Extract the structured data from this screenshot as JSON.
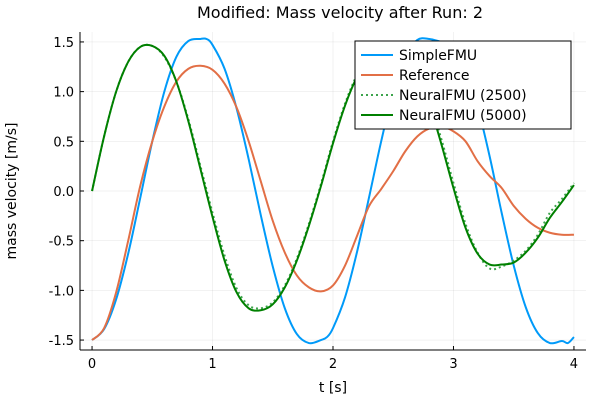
{
  "chart_data": {
    "type": "line",
    "title": "Modified: Mass velocity after Run: 2",
    "xlabel": "t [s]",
    "ylabel": "mass velocity [m/s]",
    "xlim": [
      -0.1,
      4.1
    ],
    "ylim": [
      -1.6,
      1.6
    ],
    "xticks": [
      0,
      1,
      2,
      3,
      4
    ],
    "xtick_labels": [
      "0",
      "1",
      "2",
      "3",
      "4"
    ],
    "yticks": [
      -1.5,
      -1.0,
      -0.5,
      0.0,
      0.5,
      1.0,
      1.5
    ],
    "ytick_labels": [
      "-1.5",
      "-1.0",
      "-0.5",
      "0.0",
      "0.5",
      "1.0",
      "1.5"
    ],
    "grid": true,
    "legend_position": "top-right",
    "series": [
      {
        "name": "SimpleFMU",
        "color": "#009af9",
        "dash": "solid",
        "x": [
          0.0,
          0.1,
          0.2,
          0.3,
          0.4,
          0.5,
          0.6,
          0.7,
          0.8,
          0.9,
          0.95,
          1.0,
          1.1,
          1.2,
          1.3,
          1.4,
          1.5,
          1.6,
          1.7,
          1.8,
          1.9,
          1.95,
          2.0,
          2.1,
          2.2,
          2.3,
          2.4,
          2.5,
          2.6,
          2.7,
          2.8,
          2.9,
          2.95,
          3.0,
          3.1,
          3.2,
          3.3,
          3.4,
          3.5,
          3.6,
          3.7,
          3.8,
          3.9,
          3.95,
          4.0
        ],
        "y": [
          -1.5,
          -1.39,
          -1.09,
          -0.63,
          -0.07,
          0.5,
          1.0,
          1.35,
          1.51,
          1.53,
          1.53,
          1.47,
          1.23,
          0.83,
          0.32,
          -0.24,
          -0.76,
          -1.18,
          -1.44,
          -1.53,
          -1.5,
          -1.47,
          -1.38,
          -1.07,
          -0.61,
          -0.06,
          0.5,
          1.0,
          1.36,
          1.52,
          1.53,
          1.5,
          1.5,
          1.47,
          1.24,
          0.85,
          0.35,
          -0.22,
          -0.75,
          -1.17,
          -1.43,
          -1.53,
          -1.51,
          -1.53,
          -1.47
        ]
      },
      {
        "name": "Reference",
        "color": "#e26f46",
        "dash": "solid",
        "x": [
          0.0,
          0.1,
          0.2,
          0.3,
          0.4,
          0.5,
          0.6,
          0.7,
          0.8,
          0.9,
          1.0,
          1.1,
          1.2,
          1.3,
          1.4,
          1.5,
          1.6,
          1.7,
          1.8,
          1.9,
          2.0,
          2.1,
          2.2,
          2.3,
          2.4,
          2.5,
          2.6,
          2.7,
          2.8,
          2.9,
          3.0,
          3.1,
          3.2,
          3.3,
          3.4,
          3.5,
          3.6,
          3.7,
          3.8,
          3.9,
          4.0
        ],
        "y": [
          -1.5,
          -1.38,
          -1.02,
          -0.5,
          0.05,
          0.5,
          0.85,
          1.1,
          1.23,
          1.26,
          1.22,
          1.08,
          0.84,
          0.5,
          0.1,
          -0.3,
          -0.62,
          -0.85,
          -0.97,
          -1.01,
          -0.95,
          -0.75,
          -0.45,
          -0.15,
          0.02,
          0.2,
          0.4,
          0.55,
          0.63,
          0.65,
          0.6,
          0.5,
          0.3,
          0.15,
          0.03,
          -0.15,
          -0.28,
          -0.37,
          -0.42,
          -0.44,
          -0.44
        ]
      },
      {
        "name": "NeuralFMU (2500)",
        "color": "#3da44d",
        "dash": "dotted",
        "x": [
          0.0,
          0.1,
          0.2,
          0.3,
          0.4,
          0.5,
          0.6,
          0.7,
          0.8,
          0.9,
          1.0,
          1.1,
          1.2,
          1.3,
          1.4,
          1.5,
          1.6,
          1.7,
          1.8,
          1.9,
          2.0,
          2.1,
          2.2,
          2.3,
          2.4,
          2.5,
          2.6,
          2.7,
          2.8,
          2.9,
          3.0,
          3.1,
          3.2,
          3.3,
          3.4,
          3.5,
          3.6,
          3.7,
          3.8,
          3.9,
          4.0
        ],
        "y": [
          0.0,
          0.55,
          1.0,
          1.3,
          1.45,
          1.46,
          1.35,
          1.1,
          0.72,
          0.25,
          -0.22,
          -0.65,
          -0.98,
          -1.15,
          -1.18,
          -1.12,
          -0.95,
          -0.68,
          -0.33,
          0.07,
          0.5,
          0.88,
          1.17,
          1.35,
          1.43,
          1.43,
          1.35,
          1.18,
          0.9,
          0.52,
          0.08,
          -0.33,
          -0.62,
          -0.78,
          -0.76,
          -0.7,
          -0.6,
          -0.44,
          -0.22,
          -0.08,
          0.08
        ]
      },
      {
        "name": "NeuralFMU (5000)",
        "color": "#008000",
        "dash": "solid",
        "x": [
          0.0,
          0.1,
          0.2,
          0.3,
          0.4,
          0.5,
          0.6,
          0.7,
          0.8,
          0.9,
          1.0,
          1.1,
          1.2,
          1.3,
          1.4,
          1.5,
          1.6,
          1.7,
          1.8,
          1.9,
          2.0,
          2.1,
          2.2,
          2.3,
          2.4,
          2.5,
          2.6,
          2.7,
          2.8,
          2.9,
          3.0,
          3.1,
          3.2,
          3.3,
          3.4,
          3.5,
          3.6,
          3.7,
          3.8,
          3.9,
          4.0
        ],
        "y": [
          0.0,
          0.55,
          1.0,
          1.3,
          1.45,
          1.46,
          1.36,
          1.1,
          0.7,
          0.22,
          -0.26,
          -0.7,
          -1.02,
          -1.18,
          -1.2,
          -1.14,
          -0.97,
          -0.7,
          -0.35,
          0.05,
          0.48,
          0.86,
          1.15,
          1.34,
          1.42,
          1.42,
          1.34,
          1.16,
          0.87,
          0.47,
          0.03,
          -0.37,
          -0.63,
          -0.74,
          -0.74,
          -0.72,
          -0.62,
          -0.47,
          -0.27,
          -0.11,
          0.06
        ]
      }
    ]
  }
}
